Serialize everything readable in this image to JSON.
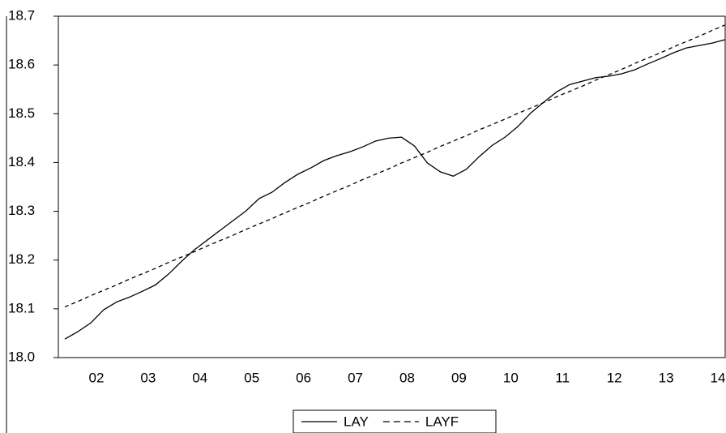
{
  "chart_data": {
    "type": "line",
    "categories": [
      null,
      null,
      "02",
      null,
      null,
      null,
      "03",
      null,
      null,
      null,
      "04",
      null,
      null,
      null,
      "05",
      null,
      null,
      null,
      "06",
      null,
      null,
      null,
      "07",
      null,
      null,
      null,
      "08",
      null,
      null,
      null,
      "09",
      null,
      null,
      null,
      "10",
      null,
      null,
      null,
      "11",
      null,
      null,
      null,
      "12",
      null,
      null,
      null,
      "13",
      null,
      null,
      null,
      "14",
      null
    ],
    "series": [
      {
        "name": "LAY",
        "color": "#000000",
        "style": "solid",
        "values": [
          18.038,
          18.053,
          18.071,
          18.098,
          18.114,
          18.124,
          18.136,
          18.149,
          18.171,
          18.197,
          18.221,
          18.241,
          18.261,
          18.281,
          18.301,
          18.326,
          18.339,
          18.359,
          18.376,
          18.389,
          18.404,
          18.414,
          18.422,
          18.432,
          18.444,
          18.45,
          18.452,
          18.434,
          18.399,
          18.381,
          18.372,
          18.386,
          18.412,
          18.435,
          18.452,
          18.474,
          18.502,
          18.524,
          18.545,
          18.56,
          18.567,
          18.574,
          18.577,
          18.582,
          18.59,
          18.602,
          18.613,
          18.625,
          18.635,
          18.64,
          18.645,
          18.652
        ]
      },
      {
        "name": "LAYF",
        "color": "#000000",
        "style": "dashed",
        "values": [
          18.104,
          18.115,
          18.127,
          18.138,
          18.149,
          18.161,
          18.172,
          18.183,
          18.195,
          18.206,
          18.217,
          18.229,
          18.24,
          18.251,
          18.263,
          18.274,
          18.285,
          18.297,
          18.308,
          18.319,
          18.331,
          18.342,
          18.353,
          18.365,
          18.376,
          18.387,
          18.399,
          18.41,
          18.421,
          18.433,
          18.444,
          18.455,
          18.467,
          18.478,
          18.489,
          18.501,
          18.512,
          18.523,
          18.535,
          18.546,
          18.557,
          18.569,
          18.58,
          18.591,
          18.603,
          18.614,
          18.625,
          18.637,
          18.648,
          18.659,
          18.671,
          18.682
        ]
      }
    ],
    "ylim": [
      18.0,
      18.7
    ],
    "yticks": [
      {
        "value": 18.0,
        "label": "18.0"
      },
      18.1,
      18.2,
      18.3,
      18.4,
      18.5,
      18.6,
      18.7
    ],
    "grid": false,
    "legend": "bottom"
  }
}
